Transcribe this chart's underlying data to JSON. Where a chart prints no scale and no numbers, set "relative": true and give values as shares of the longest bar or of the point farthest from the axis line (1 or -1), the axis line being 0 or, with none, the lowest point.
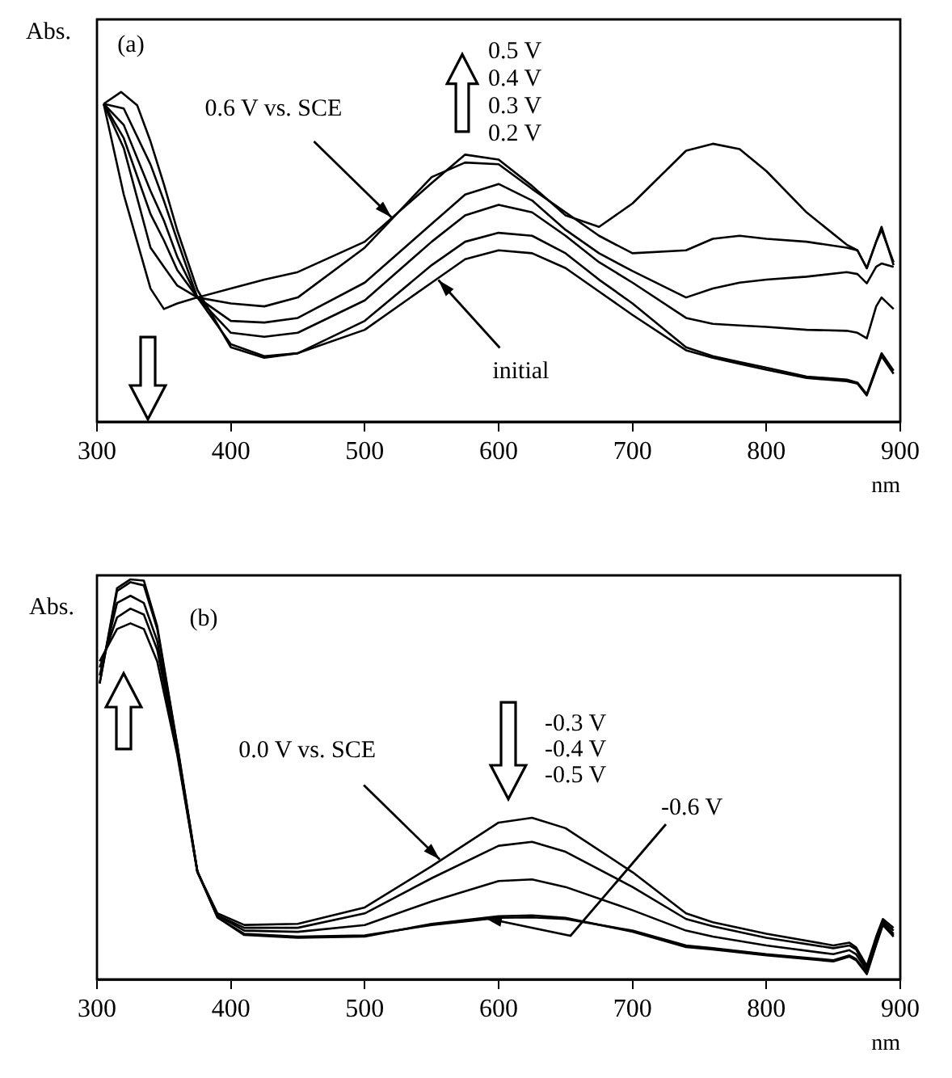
{
  "chart_data": [
    {
      "type": "line",
      "title": "(a)",
      "xlabel": "nm",
      "ylabel": "Abs.",
      "relative": true,
      "xlim": [
        300,
        900
      ],
      "xticks": [
        300,
        400,
        500,
        600,
        700,
        800,
        900
      ],
      "grid": false,
      "marker": "none",
      "line_style": "solid",
      "annotations": [
        {
          "text": "0.6 V vs. SCE",
          "x": 520,
          "y": 0.62
        },
        {
          "text": "initial",
          "x": 555,
          "y": 0.43
        },
        "0.5 V",
        "0.4 V",
        "0.3 V",
        "0.2 V"
      ],
      "series": [
        {
          "color": "#000000",
          "x": [
            305,
            320,
            340,
            350,
            360,
            375,
            400,
            425,
            450,
            500,
            550,
            575,
            600,
            625,
            650,
            675,
            700,
            740,
            760,
            780,
            800,
            830,
            860,
            868,
            875,
            882,
            886,
            895
          ],
          "values": [
            0.964,
            0.689,
            0.404,
            0.342,
            0.359,
            0.377,
            0.404,
            0.431,
            0.454,
            0.546,
            0.724,
            0.81,
            0.795,
            0.715,
            0.626,
            0.591,
            0.662,
            0.822,
            0.843,
            0.827,
            0.76,
            0.635,
            0.537,
            0.52,
            0.466,
            0.546,
            0.591,
            0.475
          ]
        },
        {
          "color": "#000000",
          "x": [
            305,
            320,
            340,
            350,
            360,
            375,
            400,
            425,
            450,
            500,
            550,
            575,
            600,
            625,
            650,
            675,
            700,
            740,
            760,
            780,
            800,
            830,
            860,
            868,
            875,
            882,
            886,
            895
          ],
          "values": [
            0.964,
            0.83,
            0.528,
            0.47,
            0.413,
            0.377,
            0.359,
            0.35,
            0.377,
            0.528,
            0.742,
            0.786,
            0.781,
            0.706,
            0.635,
            0.564,
            0.511,
            0.52,
            0.555,
            0.564,
            0.555,
            0.546,
            0.528,
            0.52,
            0.466,
            0.546,
            0.582,
            0.484
          ]
        },
        {
          "color": "#000000",
          "x": [
            305,
            320,
            340,
            350,
            360,
            375,
            400,
            425,
            450,
            500,
            550,
            575,
            600,
            625,
            650,
            675,
            700,
            740,
            760,
            780,
            800,
            830,
            860,
            868,
            875,
            882,
            886,
            895
          ],
          "values": [
            0.964,
            0.86,
            0.63,
            0.55,
            0.46,
            0.377,
            0.306,
            0.301,
            0.315,
            0.422,
            0.6,
            0.689,
            0.721,
            0.671,
            0.582,
            0.511,
            0.457,
            0.377,
            0.404,
            0.422,
            0.431,
            0.44,
            0.454,
            0.448,
            0.42,
            0.47,
            0.48,
            0.47
          ]
        },
        {
          "color": "#000000",
          "x": [
            305,
            320,
            340,
            350,
            360,
            375,
            400,
            425,
            450,
            500,
            550,
            575,
            600,
            625,
            650,
            675,
            700,
            740,
            760,
            780,
            800,
            830,
            860,
            868,
            875,
            882,
            886,
            895
          ],
          "values": [
            0.964,
            0.9,
            0.7,
            0.61,
            0.5,
            0.377,
            0.27,
            0.258,
            0.27,
            0.368,
            0.546,
            0.626,
            0.658,
            0.635,
            0.564,
            0.484,
            0.422,
            0.315,
            0.297,
            0.292,
            0.288,
            0.279,
            0.276,
            0.27,
            0.253,
            0.35,
            0.377,
            0.342
          ]
        },
        {
          "color": "#000000",
          "x": [
            305,
            320,
            340,
            350,
            360,
            375,
            400,
            425,
            450,
            500,
            550,
            575,
            600,
            625,
            650,
            675,
            700,
            740,
            760,
            780,
            800,
            830,
            860,
            868,
            875,
            882,
            886,
            895
          ],
          "values": [
            0.964,
            0.95,
            0.78,
            0.67,
            0.55,
            0.377,
            0.235,
            0.199,
            0.208,
            0.306,
            0.475,
            0.546,
            0.573,
            0.564,
            0.511,
            0.431,
            0.359,
            0.226,
            0.199,
            0.181,
            0.164,
            0.137,
            0.128,
            0.119,
            0.084,
            0.164,
            0.208,
            0.155
          ]
        },
        {
          "color": "#000000",
          "x": [
            305,
            318,
            330,
            340,
            350,
            360,
            375,
            400,
            425,
            450,
            500,
            550,
            575,
            600,
            625,
            650,
            675,
            700,
            740,
            760,
            780,
            800,
            830,
            860,
            868,
            875,
            882,
            886,
            895
          ],
          "values": [
            0.964,
            1.0,
            0.96,
            0.85,
            0.72,
            0.58,
            0.4,
            0.226,
            0.194,
            0.208,
            0.279,
            0.422,
            0.493,
            0.52,
            0.511,
            0.466,
            0.395,
            0.324,
            0.217,
            0.194,
            0.176,
            0.158,
            0.133,
            0.123,
            0.116,
            0.08,
            0.158,
            0.199,
            0.146
          ]
        }
      ]
    },
    {
      "type": "line",
      "title": "(b)",
      "xlabel": "nm",
      "ylabel": "Abs.",
      "relative": true,
      "xlim": [
        300,
        900
      ],
      "xticks": [
        300,
        400,
        500,
        600,
        700,
        800,
        900
      ],
      "grid": false,
      "marker": "none",
      "line_style": "solid",
      "annotations": [
        {
          "text": "0.0 V vs. SCE",
          "x": 556,
          "y": 0.3
        },
        "-0.3 V",
        "-0.4 V",
        "-0.5 V",
        "-0.6 V"
      ],
      "series": [
        {
          "color": "#000000",
          "x": [
            302,
            315,
            325,
            335,
            345,
            360,
            375,
            390,
            410,
            450,
            500,
            550,
            600,
            625,
            650,
            700,
            740,
            760,
            800,
            850,
            862,
            867,
            875,
            882,
            887,
            895
          ],
          "values": [
            0.795,
            0.876,
            0.89,
            0.876,
            0.795,
            0.561,
            0.268,
            0.165,
            0.136,
            0.139,
            0.18,
            0.283,
            0.392,
            0.404,
            0.378,
            0.268,
            0.165,
            0.143,
            0.114,
            0.085,
            0.092,
            0.08,
            0.034,
            0.107,
            0.151,
            0.129
          ]
        },
        {
          "color": "#000000",
          "x": [
            302,
            315,
            325,
            335,
            345,
            360,
            375,
            390,
            410,
            450,
            500,
            550,
            600,
            625,
            650,
            700,
            740,
            760,
            800,
            850,
            862,
            867,
            875,
            882,
            887,
            895
          ],
          "values": [
            0.78,
            0.905,
            0.927,
            0.912,
            0.824,
            0.568,
            0.268,
            0.16,
            0.129,
            0.129,
            0.165,
            0.253,
            0.334,
            0.344,
            0.319,
            0.231,
            0.151,
            0.133,
            0.104,
            0.078,
            0.085,
            0.075,
            0.026,
            0.1,
            0.146,
            0.122
          ]
        },
        {
          "color": "#000000",
          "x": [
            302,
            315,
            325,
            335,
            345,
            360,
            375,
            390,
            410,
            450,
            500,
            550,
            600,
            625,
            650,
            700,
            740,
            760,
            800,
            850,
            862,
            867,
            875,
            882,
            887,
            895
          ],
          "values": [
            0.76,
            0.941,
            0.959,
            0.941,
            0.846,
            0.575,
            0.27,
            0.16,
            0.122,
            0.119,
            0.136,
            0.195,
            0.246,
            0.25,
            0.231,
            0.173,
            0.122,
            0.107,
            0.085,
            0.063,
            0.073,
            0.063,
            0.022,
            0.092,
            0.142,
            0.114
          ]
        },
        {
          "color": "#000000",
          "x": [
            302,
            315,
            325,
            335,
            345,
            360,
            375,
            390,
            410,
            450,
            500,
            550,
            600,
            625,
            650,
            700,
            740,
            760,
            800,
            850,
            862,
            867,
            875,
            882,
            887,
            895
          ],
          "values": [
            0.74,
            0.971,
            0.993,
            0.985,
            0.876,
            0.583,
            0.27,
            0.155,
            0.114,
            0.107,
            0.11,
            0.136,
            0.154,
            0.155,
            0.151,
            0.122,
            0.085,
            0.078,
            0.063,
            0.048,
            0.06,
            0.051,
            0.016,
            0.089,
            0.139,
            0.11
          ]
        },
        {
          "color": "#000000",
          "x": [
            302,
            315,
            325,
            335,
            345,
            360,
            375,
            390,
            410,
            450,
            500,
            550,
            600,
            625,
            650,
            700,
            740,
            760,
            800,
            850,
            862,
            867,
            875,
            882,
            887,
            895
          ],
          "values": [
            0.74,
            0.978,
            1.0,
            0.997,
            0.883,
            0.586,
            0.27,
            0.155,
            0.111,
            0.104,
            0.107,
            0.139,
            0.158,
            0.16,
            0.154,
            0.119,
            0.081,
            0.075,
            0.06,
            0.045,
            0.057,
            0.048,
            0.013,
            0.086,
            0.136,
            0.107
          ]
        }
      ]
    }
  ]
}
